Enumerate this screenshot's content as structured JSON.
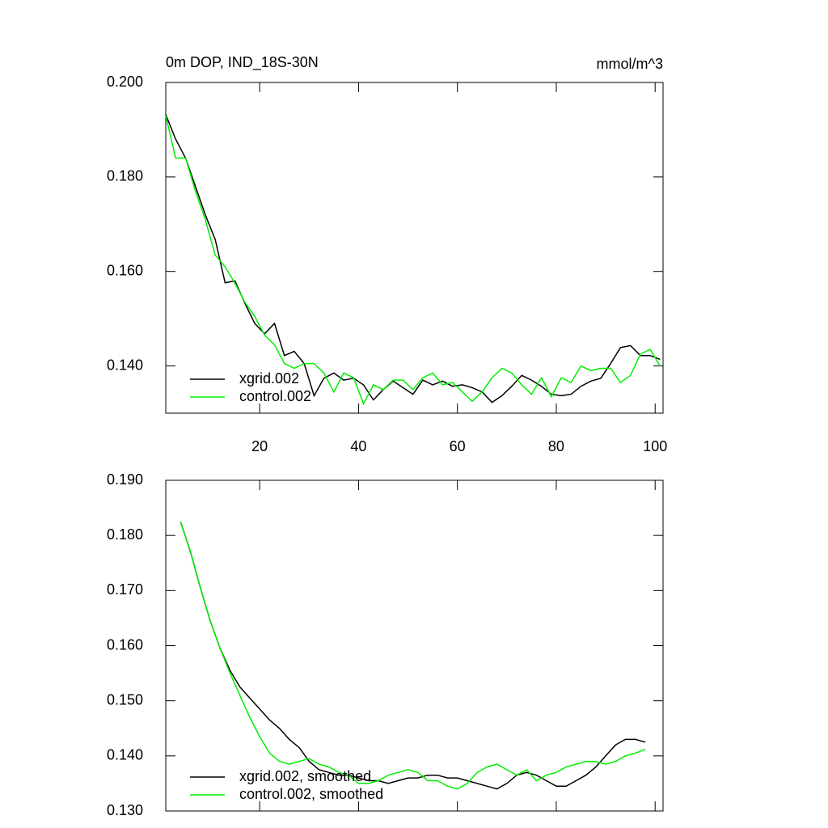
{
  "chart_data": [
    {
      "type": "line",
      "title": "0m DOP, IND_18S-30N",
      "units": "mmol/m^3",
      "x": [
        1,
        3,
        5,
        7,
        9,
        11,
        13,
        15,
        17,
        19,
        21,
        23,
        25,
        27,
        29,
        31,
        33,
        35,
        37,
        39,
        41,
        43,
        45,
        47,
        49,
        51,
        53,
        55,
        57,
        59,
        61,
        63,
        65,
        67,
        69,
        71,
        73,
        75,
        77,
        79,
        81,
        83,
        85,
        87,
        89,
        91,
        93,
        95,
        97,
        99,
        101
      ],
      "series": [
        {
          "name": "xgrid.002",
          "color": "#000000",
          "values": [
            0.1932,
            0.188,
            0.184,
            0.178,
            0.172,
            0.1668,
            0.1576,
            0.158,
            0.1533,
            0.149,
            0.1468,
            0.149,
            0.1422,
            0.1431,
            0.1405,
            0.1337,
            0.1374,
            0.1385,
            0.137,
            0.1374,
            0.136,
            0.1328,
            0.135,
            0.1368,
            0.1354,
            0.134,
            0.137,
            0.136,
            0.1368,
            0.1357,
            0.136,
            0.1354,
            0.1345,
            0.1323,
            0.1337,
            0.1357,
            0.138,
            0.137,
            0.1357,
            0.134,
            0.1337,
            0.134,
            0.1357,
            0.1368,
            0.1374,
            0.1405,
            0.1439,
            0.1443,
            0.1422,
            0.1422,
            0.1414
          ]
        },
        {
          "name": "control.002",
          "color": "#00ee00",
          "values": [
            0.193,
            0.184,
            0.184,
            0.177,
            0.171,
            0.1635,
            0.161,
            0.1575,
            0.1535,
            0.1505,
            0.1465,
            0.1445,
            0.1405,
            0.1395,
            0.1405,
            0.1405,
            0.1385,
            0.1345,
            0.1385,
            0.1375,
            0.132,
            0.136,
            0.135,
            0.137,
            0.137,
            0.135,
            0.1375,
            0.1385,
            0.136,
            0.1365,
            0.1345,
            0.1325,
            0.1345,
            0.1375,
            0.1395,
            0.1385,
            0.136,
            0.134,
            0.1375,
            0.1335,
            0.1375,
            0.1365,
            0.14,
            0.139,
            0.1395,
            0.1395,
            0.1365,
            0.138,
            0.1425,
            0.1435,
            0.14
          ]
        }
      ],
      "xlim": [
        1,
        101.6
      ],
      "xticks": [
        20,
        40,
        60,
        80,
        100
      ],
      "ylim": [
        0.13,
        0.2
      ],
      "yticks": [
        {
          "value": 0.14,
          "label": "0.140"
        },
        {
          "value": 0.16,
          "label": "0.160"
        },
        {
          "value": 0.18,
          "label": "0.180"
        },
        {
          "value": 0.2,
          "label": "0.200"
        }
      ],
      "legend": "lower left"
    },
    {
      "type": "line",
      "x": [
        4,
        6,
        8,
        10,
        12,
        14,
        16,
        18,
        20,
        22,
        24,
        26,
        28,
        30,
        32,
        34,
        36,
        38,
        40,
        42,
        44,
        46,
        48,
        50,
        52,
        54,
        56,
        58,
        60,
        62,
        64,
        66,
        68,
        70,
        72,
        74,
        76,
        78,
        80,
        82,
        84,
        86,
        88,
        90,
        92,
        94,
        96,
        98
      ],
      "series": [
        {
          "name": "xgrid.002, smoothed",
          "color": "#000000",
          "values": [
            0.1825,
            0.177,
            0.1705,
            0.1645,
            0.1595,
            0.1555,
            0.1525,
            0.1505,
            0.1485,
            0.1465,
            0.145,
            0.143,
            0.1415,
            0.139,
            0.1375,
            0.137,
            0.1365,
            0.1365,
            0.136,
            0.1355,
            0.1355,
            0.135,
            0.1355,
            0.136,
            0.136,
            0.1365,
            0.1365,
            0.136,
            0.136,
            0.1355,
            0.135,
            0.1345,
            0.134,
            0.135,
            0.1365,
            0.137,
            0.1365,
            0.1355,
            0.1345,
            0.1345,
            0.1355,
            0.1365,
            0.138,
            0.14,
            0.142,
            0.143,
            0.143,
            0.1425
          ]
        },
        {
          "name": "control.002, smoothed",
          "color": "#00ee00",
          "values": [
            0.1825,
            0.177,
            0.1705,
            0.1645,
            0.1595,
            0.155,
            0.151,
            0.147,
            0.1435,
            0.1405,
            0.139,
            0.1385,
            0.139,
            0.1395,
            0.1385,
            0.138,
            0.137,
            0.1365,
            0.135,
            0.135,
            0.1355,
            0.1365,
            0.137,
            0.1375,
            0.137,
            0.1355,
            0.1355,
            0.1345,
            0.134,
            0.135,
            0.137,
            0.138,
            0.1385,
            0.1375,
            0.1365,
            0.1375,
            0.1355,
            0.1365,
            0.137,
            0.138,
            0.1385,
            0.139,
            0.139,
            0.1385,
            0.139,
            0.14,
            0.1405,
            0.1412
          ]
        }
      ],
      "xlim": [
        1,
        101.6
      ],
      "xticks": [
        20,
        40,
        60,
        80,
        100
      ],
      "ylim": [
        0.13,
        0.19
      ],
      "yticks": [
        {
          "value": 0.13,
          "label": "0.130"
        },
        {
          "value": 0.14,
          "label": "0.140"
        },
        {
          "value": 0.15,
          "label": "0.150"
        },
        {
          "value": 0.16,
          "label": "0.160"
        },
        {
          "value": 0.17,
          "label": "0.170"
        },
        {
          "value": 0.18,
          "label": "0.180"
        },
        {
          "value": 0.19,
          "label": "0.190"
        }
      ],
      "legend": "lower left"
    }
  ]
}
